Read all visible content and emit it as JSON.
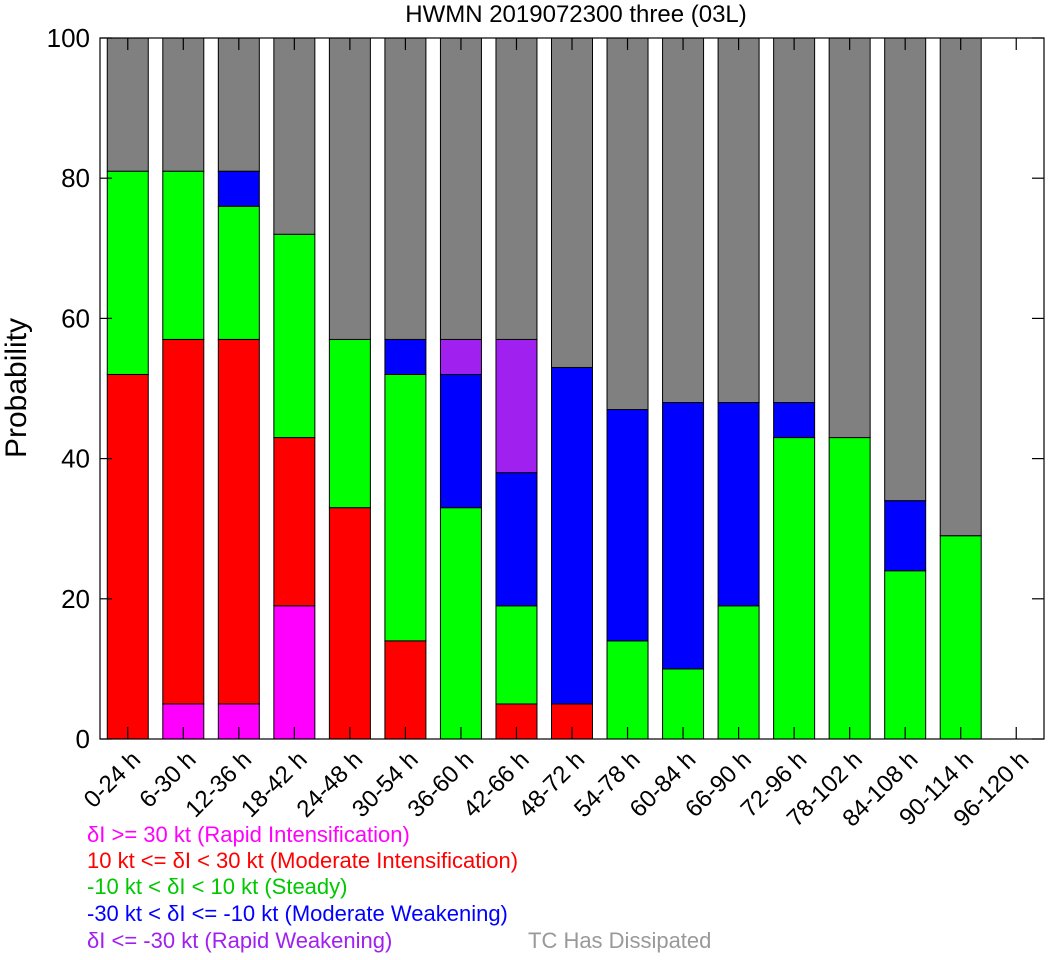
{
  "chart_data": {
    "type": "bar",
    "stacked": true,
    "title": "HWMN 2019072300 three (03L)",
    "xlabel": "",
    "ylabel": "Probability",
    "ylim": [
      0,
      100
    ],
    "yticks": [
      "0",
      "20",
      "40",
      "60",
      "80",
      "100"
    ],
    "grid": false,
    "categories": [
      "0-24 h",
      "6-30 h",
      "12-36 h",
      "18-42 h",
      "24-48 h",
      "30-54 h",
      "36-60 h",
      "42-66 h",
      "48-72 h",
      "54-78 h",
      "60-84 h",
      "66-90 h",
      "72-96 h",
      "78-102 h",
      "84-108 h",
      "90-114 h",
      "96-120 h"
    ],
    "series": [
      {
        "name": "δI >= 30 kt (Rapid Intensification)",
        "color": "#ff00ff",
        "values": [
          0,
          5,
          5,
          19,
          0,
          0,
          0,
          0,
          0,
          0,
          0,
          0,
          0,
          0,
          0,
          0,
          0
        ]
      },
      {
        "name": "10 kt <= δI < 30 kt (Moderate Intensification)",
        "color": "#ff0000",
        "values": [
          52,
          52,
          52,
          24,
          33,
          14,
          0,
          5,
          5,
          0,
          0,
          0,
          0,
          0,
          0,
          0,
          0
        ]
      },
      {
        "name": "-10 kt < δI < 10 kt (Steady)",
        "color": "#00ff00",
        "values": [
          29,
          24,
          19,
          29,
          24,
          38,
          33,
          14,
          0,
          14,
          10,
          19,
          43,
          43,
          24,
          29,
          0
        ]
      },
      {
        "name": "-30 kt < δI <= -10 kt (Moderate Weakening)",
        "color": "#0000ff",
        "values": [
          0,
          0,
          5,
          0,
          0,
          5,
          19,
          19,
          48,
          33,
          38,
          29,
          5,
          0,
          10,
          0,
          0
        ]
      },
      {
        "name": "δI <= -30 kt (Rapid Weakening)",
        "color": "#a020f0",
        "values": [
          0,
          0,
          0,
          0,
          0,
          0,
          5,
          19,
          0,
          0,
          0,
          0,
          0,
          0,
          0,
          0,
          0
        ]
      },
      {
        "name": "TC Has Dissipated",
        "color": "#808080",
        "values": [
          19,
          19,
          19,
          28,
          43,
          43,
          43,
          43,
          47,
          53,
          52,
          52,
          52,
          57,
          66,
          71,
          0
        ]
      }
    ]
  },
  "legend": {
    "items": [
      {
        "text": "δI >= 30 kt (Rapid Intensification)",
        "color": "#ff00ff"
      },
      {
        "text": "10 kt <= δI < 30 kt (Moderate Intensification)",
        "color": "#ff0000"
      },
      {
        "text": "-10 kt < δI < 10 kt (Steady)",
        "color": "#00c800"
      },
      {
        "text": "-30 kt < δI <= -10 kt (Moderate Weakening)",
        "color": "#0000ff"
      },
      {
        "text": "δI <= -30 kt (Rapid Weakening)",
        "color": "#a020f0"
      },
      {
        "text": "TC Has Dissipated",
        "color": "#999999"
      }
    ]
  }
}
